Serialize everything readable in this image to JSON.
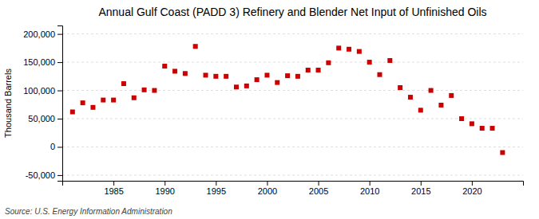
{
  "chart_data": {
    "type": "scatter",
    "title": "Annual Gulf Coast (PADD 3) Refinery and Blender Net Input of Unfinished Oils",
    "ylabel": "Thousand Barrels",
    "annotation": "Source: U.S. Energy Information Administration",
    "x": [
      1981,
      1982,
      1983,
      1984,
      1985,
      1986,
      1987,
      1988,
      1989,
      1990,
      1991,
      1992,
      1993,
      1994,
      1995,
      1996,
      1997,
      1998,
      1999,
      2000,
      2001,
      2002,
      2003,
      2004,
      2005,
      2006,
      2007,
      2008,
      2009,
      2010,
      2011,
      2012,
      2013,
      2014,
      2015,
      2016,
      2017,
      2018,
      2019,
      2020,
      2021,
      2022,
      2023
    ],
    "values": [
      62000,
      78000,
      70000,
      83000,
      83000,
      112000,
      87000,
      101000,
      100000,
      143000,
      134000,
      130000,
      178000,
      127000,
      125000,
      125000,
      106000,
      108000,
      119000,
      127000,
      114000,
      126000,
      125000,
      136000,
      136000,
      149000,
      175000,
      173000,
      169000,
      150000,
      128000,
      153000,
      105000,
      88000,
      65000,
      100000,
      74000,
      91000,
      50000,
      41000,
      33000,
      33000,
      -10000
    ],
    "color": "#cc0000",
    "marker": "square",
    "xlim": [
      1980,
      2025
    ],
    "xticks": [
      1985,
      1990,
      1995,
      2000,
      2005,
      2010,
      2015,
      2020
    ],
    "ylim": [
      -60000,
      215000
    ],
    "yticks": [
      {
        "value": -50000,
        "label": "-50,000"
      },
      0,
      {
        "value": 50000,
        "label": "50,000"
      },
      {
        "value": 100000,
        "label": "100,000"
      },
      {
        "value": 150000,
        "label": "150,000"
      },
      {
        "value": 200000,
        "label": "200,000"
      }
    ],
    "grid": true
  }
}
